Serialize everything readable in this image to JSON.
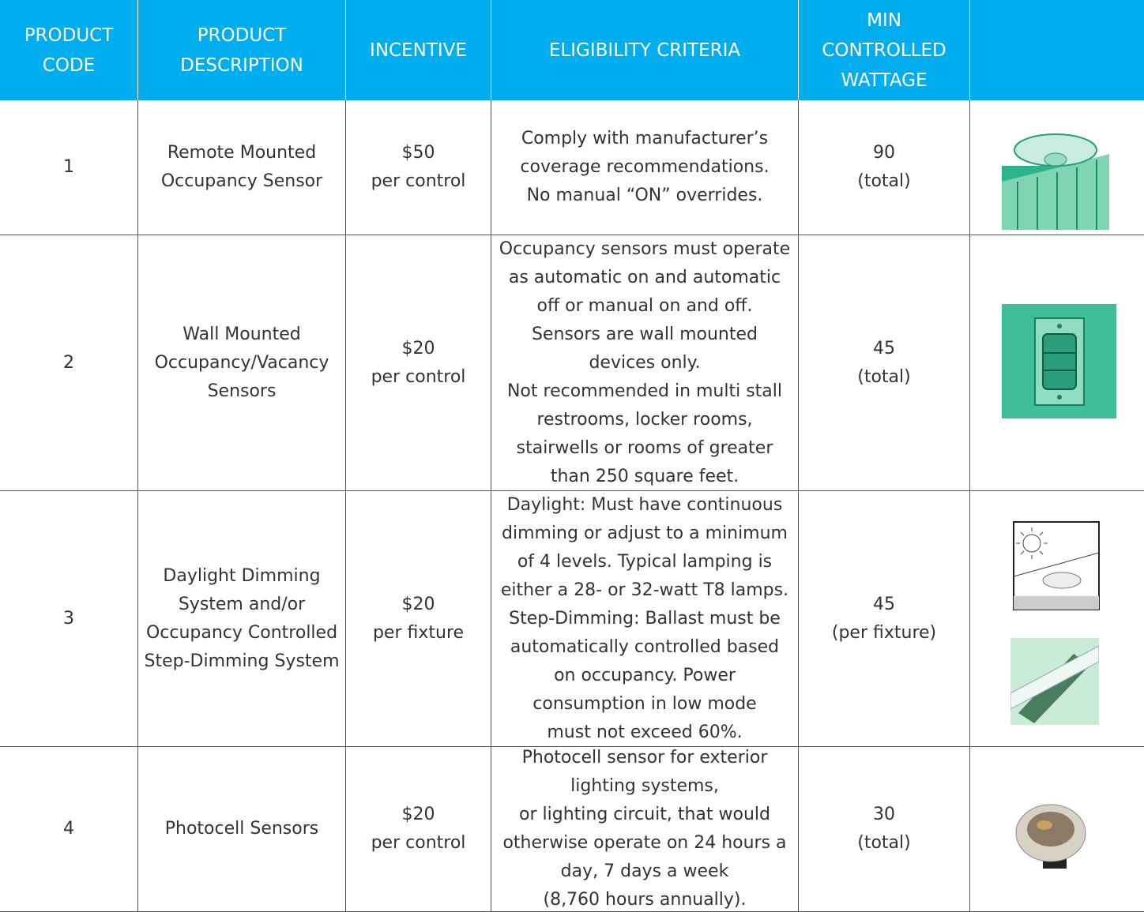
{
  "table": {
    "header": [
      [
        "PRODUCT",
        "CODE"
      ],
      [
        "PRODUCT",
        "DESCRIPTION"
      ],
      [
        "INCENTIVE"
      ],
      [
        "ELIGIBILITY CRITERIA"
      ],
      [
        "MIN",
        "CONTROLLED",
        "WATTAGE"
      ]
    ],
    "rows": [
      [
        [
          "1"
        ],
        [
          "Remote Mounted",
          "Occupancy Sensor"
        ],
        [
          "$50",
          "per control"
        ],
        [
          "Comply with manufacturer’s",
          "coverage recommendations.",
          "No manual “ON” overrides."
        ],
        [
          "90",
          "(total)"
        ]
      ],
      [
        [
          "2"
        ],
        [
          "Wall Mounted",
          "Occupancy/Vacancy",
          "Sensors"
        ],
        [
          "$20",
          "per control"
        ],
        [
          "Occupancy sensors must operate",
          "as automatic on and automatic",
          "off or manual on and off.",
          "Sensors are wall mounted",
          "devices only.",
          "Not recommended in multi stall",
          "restrooms, locker rooms,",
          "stairwells or rooms of greater",
          "than 250 square feet."
        ],
        [
          "45",
          "(total)"
        ]
      ],
      [
        [
          "3"
        ],
        [
          "Daylight Dimming",
          "System and/or",
          "Occupancy Controlled",
          "Step-Dimming System"
        ],
        [
          "$20",
          "per fixture"
        ],
        [
          "Daylight: Must have continuous",
          "dimming or adjust to a minimum",
          "of 4 levels. Typical lamping is",
          "either a 28- or 32-watt T8 lamps.",
          "Step-Dimming: Ballast must be",
          "automatically controlled based",
          "on occupancy. Power",
          "consumption in low mode",
          "must not exceed 60%."
        ],
        [
          "45",
          "(per fixture)"
        ]
      ],
      [
        [
          "4"
        ],
        [
          "Photocell Sensors"
        ],
        [
          "$20",
          "per control"
        ],
        [
          "Photocell sensor for exterior",
          "lighting systems,",
          "or lighting circuit, that would",
          "otherwise operate on 24 hours a",
          "day, 7 days a week",
          "(8,760 hours annually)."
        ],
        [
          "30",
          "(total)"
        ]
      ]
    ]
  }
}
